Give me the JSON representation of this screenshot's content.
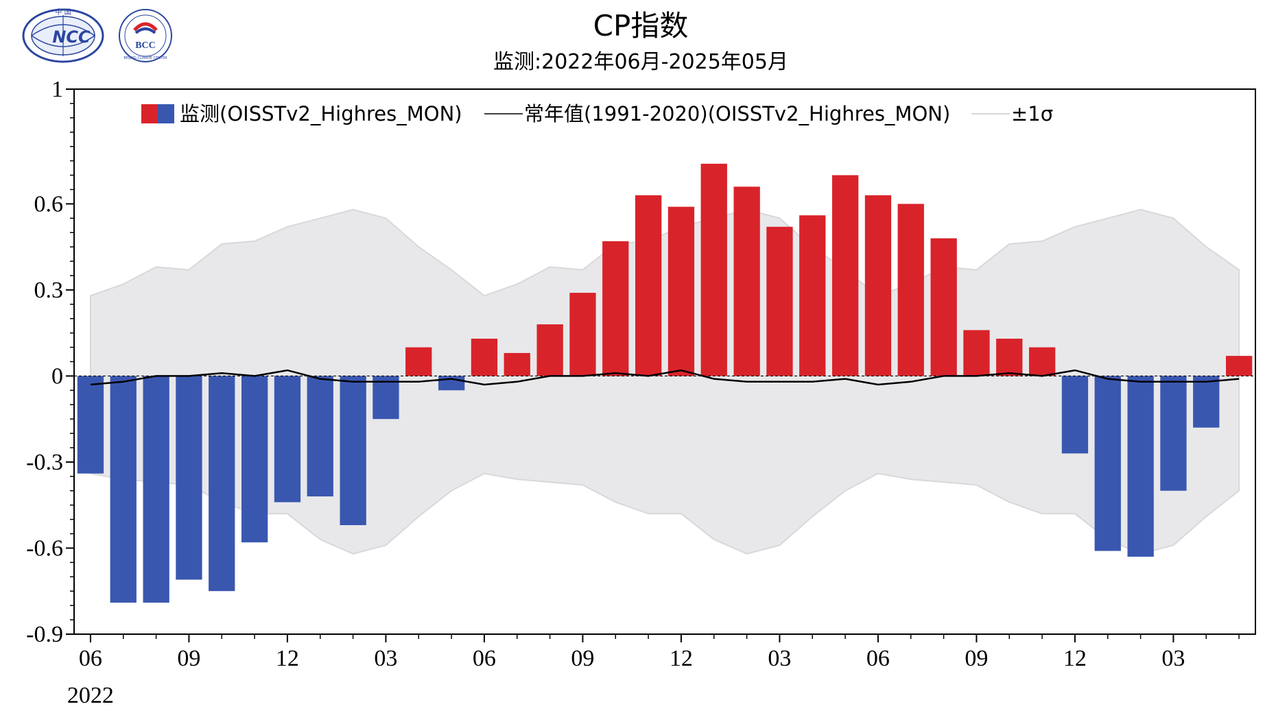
{
  "logos": {
    "left": "NCC",
    "left_top_text": "中 国",
    "right": "BCC",
    "right_ring_text": "BEIJING CLIMATE CENTER"
  },
  "chart_data": {
    "type": "bar",
    "title": "CP指数",
    "subtitle": "监测:2022年06月-2025年05月",
    "xlabel": "",
    "ylabel": "",
    "ylim": [
      -0.9,
      1
    ],
    "y_ticks": [
      "1",
      "0.6",
      "0.3",
      "0",
      "-0.3",
      "-0.6",
      "-0.9"
    ],
    "x_tick_labels": [
      "06",
      "09",
      "12",
      "03",
      "06",
      "09",
      "12",
      "03",
      "06",
      "09",
      "12",
      "03"
    ],
    "x_year_label": "2022",
    "grid": false,
    "legend_position": "top",
    "legend": [
      "监测(OISSTv2_Highres_MON)",
      "常年值(1991-2020)(OISSTv2_Highres_MON)",
      "±1σ"
    ],
    "colors": {
      "positive": "#d9232a",
      "negative": "#3a57b0",
      "normal_line": "#000000",
      "sigma_band": "#e8e8ea"
    },
    "categories": [
      "2022-06",
      "2022-07",
      "2022-08",
      "2022-09",
      "2022-10",
      "2022-11",
      "2022-12",
      "2023-01",
      "2023-02",
      "2023-03",
      "2023-04",
      "2023-05",
      "2023-06",
      "2023-07",
      "2023-08",
      "2023-09",
      "2023-10",
      "2023-11",
      "2023-12",
      "2024-01",
      "2024-02",
      "2024-03",
      "2024-04",
      "2024-05",
      "2024-06",
      "2024-07",
      "2024-08",
      "2024-09",
      "2024-10",
      "2024-11",
      "2024-12",
      "2025-01",
      "2025-02",
      "2025-03",
      "2025-04",
      "2025-05"
    ],
    "series": [
      {
        "name": "监测(OISSTv2_Highres_MON)",
        "values": [
          -0.34,
          -0.79,
          -0.79,
          -0.71,
          -0.75,
          -0.58,
          -0.44,
          -0.42,
          -0.52,
          -0.15,
          0.1,
          -0.05,
          0.13,
          0.08,
          0.18,
          0.29,
          0.47,
          0.63,
          0.59,
          0.74,
          0.66,
          0.52,
          0.56,
          0.7,
          0.63,
          0.6,
          0.48,
          0.16,
          0.13,
          0.1,
          -0.27,
          -0.61,
          -0.63,
          -0.4,
          -0.18,
          0.07
        ]
      },
      {
        "name": "常年值(1991-2020)(OISSTv2_Highres_MON)",
        "values": [
          -0.03,
          -0.02,
          0.0,
          0.0,
          0.01,
          0.0,
          0.02,
          -0.01,
          -0.02,
          -0.02,
          -0.02,
          -0.01,
          -0.03,
          -0.02,
          0.0,
          0.0,
          0.01,
          0.0,
          0.02,
          -0.01,
          -0.02,
          -0.02,
          -0.02,
          -0.01,
          -0.03,
          -0.02,
          0.0,
          0.0,
          0.01,
          0.0,
          0.02,
          -0.01,
          -0.02,
          -0.02,
          -0.02,
          -0.01
        ]
      },
      {
        "name": "±1σ",
        "upper": [
          0.28,
          0.32,
          0.38,
          0.37,
          0.46,
          0.47,
          0.52,
          0.55,
          0.58,
          0.55,
          0.45,
          0.37,
          0.28,
          0.32,
          0.38,
          0.37,
          0.46,
          0.47,
          0.52,
          0.55,
          0.58,
          0.55,
          0.45,
          0.37,
          0.28,
          0.32,
          0.38,
          0.37,
          0.46,
          0.47,
          0.52,
          0.55,
          0.58,
          0.55,
          0.45,
          0.37
        ],
        "lower": [
          -0.34,
          -0.36,
          -0.37,
          -0.38,
          -0.44,
          -0.48,
          -0.48,
          -0.57,
          -0.62,
          -0.59,
          -0.49,
          -0.4,
          -0.34,
          -0.36,
          -0.37,
          -0.38,
          -0.44,
          -0.48,
          -0.48,
          -0.57,
          -0.62,
          -0.59,
          -0.49,
          -0.4,
          -0.34,
          -0.36,
          -0.37,
          -0.38,
          -0.44,
          -0.48,
          -0.48,
          -0.57,
          -0.62,
          -0.59,
          -0.49,
          -0.4
        ]
      }
    ]
  }
}
